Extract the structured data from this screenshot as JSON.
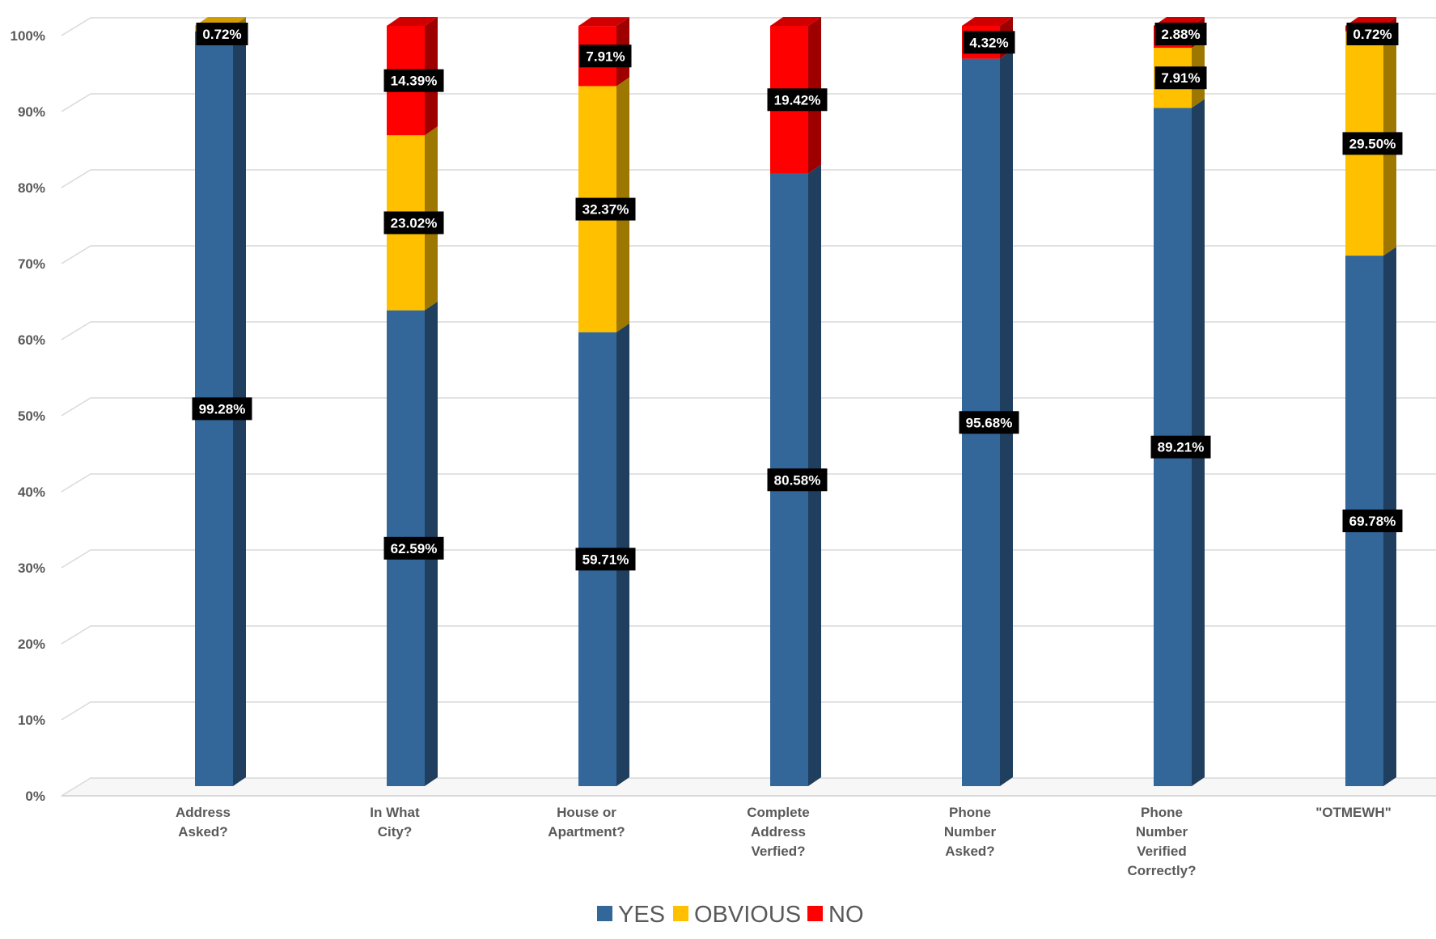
{
  "chart_data": {
    "type": "bar",
    "stacked": true,
    "percent_stacked": true,
    "three_d": true,
    "categories": [
      [
        "Address",
        "Asked?"
      ],
      [
        "In What",
        "City?"
      ],
      [
        "House or",
        "Apartment?"
      ],
      [
        "Complete",
        "Address",
        "Verfied?"
      ],
      [
        "Phone",
        "Number",
        "Asked?"
      ],
      [
        "Phone",
        "Number",
        "Verified",
        "Correctly?"
      ],
      [
        "\"OTMEWH\""
      ]
    ],
    "series": [
      {
        "name": "YES",
        "color": "#336699",
        "values": [
          99.28,
          62.59,
          59.71,
          80.58,
          95.68,
          89.21,
          69.78
        ],
        "labels": [
          "99.28%",
          "62.59%",
          "59.71%",
          "80.58%",
          "95.68%",
          "89.21%",
          "69.78%"
        ]
      },
      {
        "name": "OBVIOUS",
        "color": "#FFC000",
        "values": [
          0.72,
          23.02,
          32.37,
          0,
          0,
          7.91,
          29.5
        ],
        "labels": [
          "0.72%",
          "23.02%",
          "32.37%",
          "",
          "",
          "7.91%",
          "29.50%"
        ]
      },
      {
        "name": "NO",
        "color": "#FF0000",
        "values": [
          0,
          14.39,
          7.91,
          19.42,
          4.32,
          2.88,
          0.72
        ],
        "labels": [
          "",
          "14.39%",
          "7.91%",
          "19.42%",
          "4.32%",
          "2.88%",
          "0.72%"
        ]
      }
    ],
    "yticks": [
      "0%",
      "10%",
      "20%",
      "30%",
      "40%",
      "50%",
      "60%",
      "70%",
      "80%",
      "90%",
      "100%"
    ],
    "ylim": [
      0,
      100
    ],
    "grid": true,
    "legend": "bottom",
    "data_label_bg": "#000000",
    "data_label_color": "#ffffff"
  }
}
